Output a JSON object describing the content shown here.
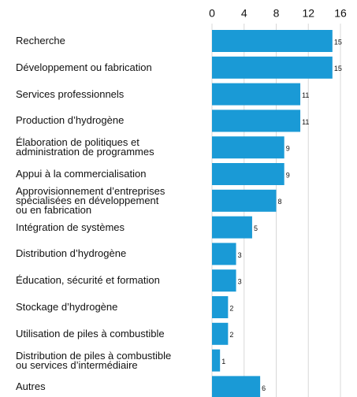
{
  "chart_data": {
    "type": "bar",
    "orientation": "horizontal",
    "categories": [
      "Recherche",
      "Développement ou fabrication",
      "Services professionnels",
      "Production d’hydrogène",
      "Élaboration de politiques et\nadministration de programmes",
      "Appui à la commercialisation",
      "Approvisionnement d’entreprises\nspécialisées en développement\nou en fabrication",
      "Intégration de systèmes",
      "Distribution d’hydrogène",
      "Éducation, sécurité et formation",
      "Stockage d’hydrogène",
      "Utilisation de piles à combustible",
      "Distribution de piles à combustible\nou services d’intermédiaire",
      "Autres"
    ],
    "values": [
      15,
      15,
      11,
      11,
      9,
      9,
      8,
      5,
      3,
      3,
      2,
      2,
      1,
      6
    ],
    "color": "#1a9ad6",
    "xlim": [
      0,
      16
    ],
    "xticks": [
      0,
      4,
      8,
      12,
      16
    ],
    "grid": true,
    "xaxis_position": "top"
  }
}
